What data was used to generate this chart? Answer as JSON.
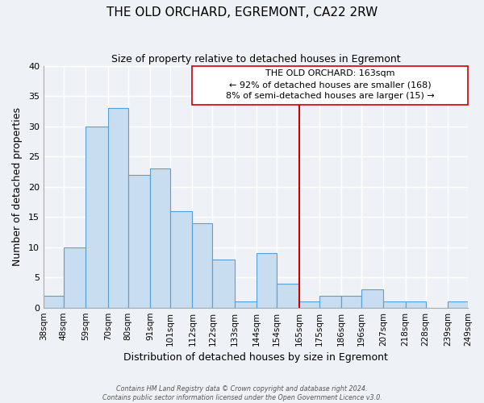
{
  "title": "THE OLD ORCHARD, EGREMONT, CA22 2RW",
  "subtitle": "Size of property relative to detached houses in Egremont",
  "xlabel": "Distribution of detached houses by size in Egremont",
  "ylabel": "Number of detached properties",
  "bin_edges": [
    38,
    48,
    59,
    70,
    80,
    91,
    101,
    112,
    122,
    133,
    144,
    154,
    165,
    175,
    186,
    196,
    207,
    218,
    228,
    239,
    249
  ],
  "bin_labels": [
    "38sqm",
    "48sqm",
    "59sqm",
    "70sqm",
    "80sqm",
    "91sqm",
    "101sqm",
    "112sqm",
    "122sqm",
    "133sqm",
    "144sqm",
    "154sqm",
    "165sqm",
    "175sqm",
    "186sqm",
    "196sqm",
    "207sqm",
    "218sqm",
    "228sqm",
    "239sqm",
    "249sqm"
  ],
  "counts": [
    2,
    10,
    30,
    33,
    22,
    23,
    16,
    14,
    8,
    1,
    9,
    4,
    1,
    2,
    2,
    3,
    1,
    1,
    0,
    1
  ],
  "bar_color": "#c8ddf0",
  "bar_edge_color": "#5a9fd4",
  "vline_color": "#cc0000",
  "annotation_line1": "THE OLD ORCHARD: 163sqm",
  "annotation_line2": "← 92% of detached houses are smaller (168)",
  "annotation_line3": "8% of semi-detached houses are larger (15) →",
  "annotation_box_color": "#ffffff",
  "annotation_box_edge": "#cc0000",
  "ylim": [
    0,
    40
  ],
  "yticks": [
    0,
    5,
    10,
    15,
    20,
    25,
    30,
    35,
    40
  ],
  "footer_line1": "Contains HM Land Registry data © Crown copyright and database right 2024.",
  "footer_line2": "Contains public sector information licensed under the Open Government Licence v3.0.",
  "background_color": "#eef2f7",
  "grid_color": "#ffffff",
  "vline_x_bin_index": 12
}
